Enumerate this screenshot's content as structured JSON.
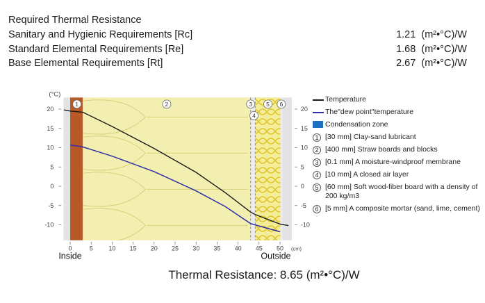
{
  "requirements": {
    "title": "Required Thermal Resistance",
    "rows": [
      {
        "label": "Sanitary and Hygienic Requirements [Rc]",
        "value": "1.21  (m²•°C)/W"
      },
      {
        "label": "Standard Elemental Requirements [Re]",
        "value": "1.68  (m²•°C)/W"
      },
      {
        "label": "Base Elemental Requirements [Rt]",
        "value": "2.67  (m²•°C)/W"
      }
    ]
  },
  "summary": "Thermal Resistance: 8.65 (m²•°C)/W",
  "colors": {
    "temperature": "#1a1a1a",
    "dew_point": "#2d2da8",
    "condensation": "#1f6fc0",
    "clay": "#b75a28",
    "straw": "#f3efb0",
    "woodfiber": "#f4ee9a",
    "woodfiber_stripe": "#e0c42c",
    "mortar": "#ececec"
  },
  "chart_data": {
    "type": "line",
    "ylabel": "(°C)",
    "xunit": "(cm)",
    "xlim": [
      0,
      50
    ],
    "ylim": [
      -14,
      23
    ],
    "x_ticks": [
      "0",
      "5",
      "10",
      "15",
      "20",
      "25",
      "30",
      "35",
      "40",
      "45",
      "50"
    ],
    "y_ticks": [
      "20",
      "15",
      "10",
      "5",
      "0",
      "-5",
      "-10"
    ],
    "right_ticks": [
      "20",
      "15",
      "10",
      "5",
      "0",
      "-5",
      "-10"
    ],
    "inside_label": "Inside",
    "outside_label": "Outside",
    "layers": [
      {
        "number": "1",
        "x0": 0,
        "x1": 3,
        "fill": "clay"
      },
      {
        "number": "2",
        "x0": 3,
        "x1": 43,
        "fill": "straw"
      },
      {
        "number": "3",
        "x0": 43,
        "x1": 43.1,
        "fill": "mortar"
      },
      {
        "number": "4",
        "x0": 43.1,
        "x1": 44.1,
        "fill": "mortar"
      },
      {
        "number": "5",
        "x0": 44.1,
        "x1": 50.1,
        "fill": "woodfiber"
      },
      {
        "number": "6",
        "x0": 50.1,
        "x1": 50.6,
        "fill": "mortar"
      }
    ],
    "series": [
      {
        "name": "Temperature",
        "points": [
          [
            -1.5,
            19.8
          ],
          [
            0,
            19.5
          ],
          [
            3,
            19.2
          ],
          [
            10,
            15.5
          ],
          [
            20,
            9.8
          ],
          [
            30,
            3.6
          ],
          [
            37,
            -1.7
          ],
          [
            43,
            -6.7
          ],
          [
            44,
            -7.3
          ],
          [
            50,
            -9.8
          ],
          [
            52,
            -10.2
          ]
        ]
      },
      {
        "name": "The\"dew point\"temperature",
        "points": [
          [
            0,
            10.7
          ],
          [
            3,
            10.2
          ],
          [
            10,
            7.8
          ],
          [
            20,
            3.8
          ],
          [
            30,
            -1.2
          ],
          [
            37,
            -5.3
          ],
          [
            43,
            -9.7
          ],
          [
            44,
            -10.0
          ],
          [
            50,
            -11.8
          ]
        ]
      }
    ],
    "legend": [
      {
        "symbol": "line",
        "color": "temperature",
        "text": "Temperature"
      },
      {
        "symbol": "line",
        "color": "dew_point",
        "text": "The\"dew point\"temperature"
      },
      {
        "symbol": "box",
        "color": "condensation",
        "text": "Condensation zone"
      },
      {
        "symbol": "num",
        "number": "1",
        "text": "[30 mm] Clay-sand lubricant"
      },
      {
        "symbol": "num",
        "number": "2",
        "text": "[400 mm] Straw boards and blocks"
      },
      {
        "symbol": "num",
        "number": "3",
        "text": "[0.1 mm] A moisture-windproof membrane"
      },
      {
        "symbol": "num",
        "number": "4",
        "text": "[10 mm] A closed air layer"
      },
      {
        "symbol": "num",
        "number": "5",
        "text": "[60 mm] Soft wood-fiber board with a density of 200 kg/m3"
      },
      {
        "symbol": "num",
        "number": "6",
        "text": "[5 mm] A composite mortar (sand, lime, cement)"
      }
    ],
    "legend_position": "right",
    "grid": false
  }
}
